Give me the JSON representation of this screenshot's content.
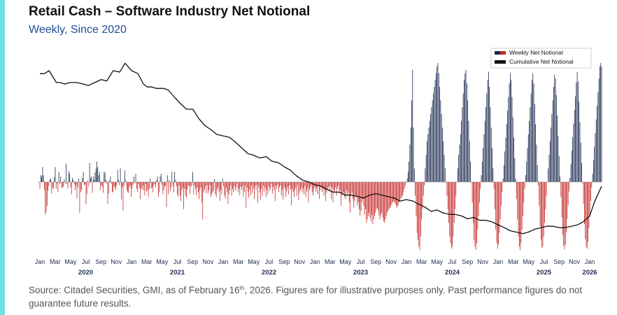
{
  "header": {
    "title": "Retail Cash – Software Industry Net Notional",
    "subtitle": "Weekly, Since 2020"
  },
  "footer": {
    "source_before": "Source: Citadel Securities, GMI, as of February 16",
    "source_sup": "th",
    "source_after": ", 2026. Figures are for illustrative purposes only. Past performance figures do not guarantee future results."
  },
  "colors": {
    "accent": "#6fe0e4",
    "positive": "#1b2a4e",
    "negative": "#c62a2a",
    "line": "#111111"
  },
  "chart_data": {
    "type": "bar+line",
    "title": "Retail Cash – Software Industry Net Notional",
    "subtitle": "Weekly, Since 2020",
    "xlabel": "",
    "ylabel": "",
    "y_axis_labels_shown": false,
    "legend_position": "top-right",
    "legend": [
      "Weekly Net Notional",
      "Cumulative Net Notional"
    ],
    "month_ticks": [
      "Jan",
      "Mar",
      "May",
      "Jul",
      "Sep",
      "Nov",
      "Jan",
      "Mar",
      "May",
      "Jul",
      "Sep",
      "Nov",
      "Jan",
      "Mar",
      "May",
      "Jul",
      "Sep",
      "Nov",
      "Jan",
      "Mar",
      "May",
      "Jul",
      "Sep",
      "Nov",
      "Jan",
      "Mar",
      "May",
      "Jul",
      "Sep",
      "Nov",
      "Jan",
      "Mar",
      "May",
      "Jul",
      "Sep",
      "Nov",
      "Jan"
    ],
    "year_labels": [
      "2020",
      "2021",
      "2022",
      "2023",
      "2024",
      "2025",
      "2026"
    ],
    "x_range_years": [
      2020.0,
      2026.13
    ],
    "series": [
      {
        "name": "Weekly Net Notional",
        "type": "bar",
        "units": "relative",
        "ylim": [
          -100,
          175
        ],
        "values": [
          -10,
          10,
          8,
          22,
          10,
          -12,
          -48,
          -44,
          -35,
          -13,
          -6,
          4,
          5,
          -17,
          -9,
          -10,
          7,
          22,
          -10,
          -2,
          -15,
          15,
          -3,
          8,
          -9,
          -8,
          -7,
          4,
          -3,
          27,
          -3,
          -10,
          16,
          12,
          -8,
          -18,
          6,
          3,
          -3,
          -12,
          -5,
          -24,
          -8,
          5,
          -45,
          -15,
          -12,
          6,
          15,
          -4,
          -4,
          -33,
          -18,
          2,
          -7,
          28,
          5,
          8,
          -16,
          8,
          3,
          14,
          20,
          30,
          22,
          10,
          15,
          -12,
          -5,
          -7,
          -16,
          15,
          14,
          3,
          -2,
          -32,
          -17,
          2,
          8,
          -3,
          -15,
          -15,
          -7,
          -8,
          -12,
          -5,
          18,
          3,
          -5,
          20,
          -26,
          -8,
          -42,
          -6,
          17,
          2,
          -12,
          -15,
          -16,
          -8,
          -5,
          -22,
          -10,
          -4,
          8,
          -2,
          12,
          -10,
          -15,
          -3,
          -8,
          -25,
          -10,
          -11,
          -5,
          -12,
          -20,
          -3,
          -14,
          -12,
          -22,
          -10,
          5,
          -10,
          -8,
          -15,
          -5,
          -3,
          -8,
          3,
          8,
          -22,
          -15,
          8,
          12,
          -4,
          -18,
          -12,
          -7,
          -5,
          -37,
          10,
          -18,
          3,
          -14,
          -8,
          15,
          -6,
          -15,
          15,
          3,
          -6,
          -18,
          -22,
          -5,
          -20,
          -28,
          -12,
          -8,
          -40,
          -10,
          -20,
          -23,
          -11,
          -6,
          -5,
          -18,
          -7,
          -5,
          15,
          -18,
          -5,
          -10,
          -20,
          -8,
          -15,
          -25,
          -12,
          -8,
          -30,
          -55,
          -15,
          -12,
          -6,
          -17,
          -5,
          -16,
          -12,
          -4,
          -22,
          -18,
          -15,
          -13,
          4,
          -18,
          -22,
          -11,
          -8,
          -14,
          -28,
          -12,
          -18,
          5,
          -6,
          -20,
          -25,
          -8,
          -15,
          -32,
          -18,
          -12,
          -5,
          -20,
          -10,
          -15,
          -6,
          -12,
          -8,
          -2,
          -15,
          -10,
          -20,
          -7,
          -12,
          -6,
          -22,
          -15,
          -5,
          -38,
          -8,
          -14,
          -23,
          -11,
          -20,
          -5,
          -16,
          -9,
          -25,
          -6,
          -12,
          -4,
          -30,
          -8,
          -15,
          -26,
          -10,
          -20,
          -5,
          -14,
          -8,
          -22,
          -11,
          -18,
          -6,
          -13,
          -9,
          -3,
          -17,
          -7,
          -12,
          -28,
          -6,
          -10,
          -4,
          -15,
          -8,
          -5,
          -20,
          -12,
          -26,
          -7,
          -10,
          -22,
          -14,
          -8,
          -18,
          -5,
          -11,
          -34,
          -10,
          -15,
          -22,
          -12,
          -8,
          -20,
          -4,
          -27,
          -16,
          -12,
          -8,
          -15,
          -10,
          -18,
          -6,
          -22,
          -14,
          -9,
          -30,
          -12,
          -8,
          -5,
          -15,
          -20,
          -11,
          -7,
          -14,
          -9,
          -18,
          -6,
          -25,
          -12,
          -8,
          -15,
          -10,
          -20,
          -12,
          -28,
          -16,
          -11,
          -7,
          -14,
          -6,
          -25,
          -8,
          -30,
          -12,
          -15,
          -8,
          -20,
          -10,
          -5,
          -16,
          -12,
          -35,
          -20,
          -18,
          -15,
          -22,
          -25,
          -12,
          -18,
          -16,
          -30,
          -45,
          -20,
          -15,
          -25,
          -38,
          -28,
          -20,
          -22,
          -35,
          -30,
          -40,
          -50,
          -42,
          -30,
          -25,
          -35,
          -48,
          -40,
          -60,
          -55,
          -50,
          -45,
          -52,
          -58,
          -48,
          -62,
          -55,
          -50,
          -45,
          -40,
          -38,
          -42,
          -50,
          -55,
          -48,
          -45,
          -52,
          -58,
          -60,
          -55,
          -50,
          -45,
          -42,
          -40,
          -38,
          -35,
          -33,
          -30,
          -28,
          -30,
          -32,
          -35,
          -38,
          -35,
          -30,
          -28,
          -25,
          -22,
          -20,
          -15,
          -10,
          -5,
          0,
          5,
          15,
          30,
          55,
          80,
          120,
          165,
          80,
          20,
          -20,
          -50,
          -75,
          -85,
          -95,
          -100,
          -80,
          -55,
          -40,
          -20,
          -5,
          20,
          40,
          60,
          70,
          80,
          90,
          100,
          110,
          120,
          130,
          140,
          150,
          160,
          170,
          175,
          160,
          140,
          120,
          100,
          80,
          60,
          40,
          20,
          0,
          -20,
          -40,
          -60,
          -80,
          -90,
          -98,
          -95,
          -80,
          -60,
          -40,
          -20,
          0,
          20,
          40,
          55,
          70,
          90,
          110,
          130,
          150,
          160,
          165,
          145,
          120,
          90,
          60,
          30,
          0,
          -30,
          -60,
          -85,
          -95,
          -100,
          -90,
          -70,
          -50,
          -30,
          -10,
          10,
          30,
          50,
          70,
          90,
          110,
          130,
          150,
          162,
          140,
          110,
          80,
          50,
          20,
          -10,
          -40,
          -70,
          -90,
          -98,
          -92,
          -75,
          -55,
          -35,
          -15,
          5,
          25,
          45,
          65,
          85,
          105,
          125,
          145,
          160,
          150,
          125,
          95,
          65,
          35,
          5,
          -25,
          -55,
          -80,
          -95,
          -100,
          -90,
          -70,
          -50,
          -30,
          -10,
          10,
          30,
          50,
          70,
          90,
          110,
          130,
          150,
          160,
          145,
          115,
          85,
          55,
          25,
          -5,
          -35,
          -65,
          -85,
          -97,
          -95,
          -80,
          -60,
          -40,
          -20,
          0,
          20,
          40,
          60,
          80,
          100,
          120,
          140,
          158,
          152,
          128,
          98,
          68,
          38,
          8,
          -22,
          -52,
          -78,
          -94,
          -99,
          -92,
          -74,
          -54,
          -34,
          -14,
          6,
          26,
          46,
          66,
          86,
          106,
          126,
          146,
          162,
          148,
          118,
          88,
          58,
          28,
          -2,
          -32,
          -62,
          -84,
          -96,
          -98,
          -88,
          -68,
          -48,
          -28,
          -8,
          12,
          32,
          52,
          72,
          92,
          112,
          132,
          152,
          170,
          175,
          170
        ]
      },
      {
        "name": "Cumulative Net Notional",
        "type": "line",
        "units": "relative",
        "ylim": [
          -40,
          80
        ],
        "x": [
          2020.0,
          2020.05,
          2020.1,
          2020.14,
          2020.18,
          2020.22,
          2020.27,
          2020.33,
          2020.4,
          2020.47,
          2020.53,
          2020.6,
          2020.67,
          2020.73,
          2020.8,
          2020.87,
          2020.93,
          2021.0,
          2021.07,
          2021.13,
          2021.17,
          2021.22,
          2021.27,
          2021.3,
          2021.35,
          2021.4,
          2021.47,
          2021.53,
          2021.6,
          2021.67,
          2021.73,
          2021.8,
          2021.87,
          2021.93,
          2022.0,
          2022.07,
          2022.13,
          2022.2,
          2022.27,
          2022.33,
          2022.4,
          2022.47,
          2022.53,
          2022.6,
          2022.67,
          2022.73,
          2022.8,
          2022.87,
          2022.93,
          2023.0,
          2023.07,
          2023.13,
          2023.2,
          2023.27,
          2023.33,
          2023.4,
          2023.47,
          2023.53,
          2023.6,
          2023.67,
          2023.73,
          2023.8,
          2023.87,
          2023.93,
          2024.0,
          2024.07,
          2024.13,
          2024.2,
          2024.27,
          2024.33,
          2024.4,
          2024.47,
          2024.53,
          2024.6,
          2024.67,
          2024.73,
          2024.8,
          2024.87,
          2024.93,
          2025.0,
          2025.07,
          2025.13,
          2025.2,
          2025.27,
          2025.33,
          2025.4,
          2025.47,
          2025.53,
          2025.6,
          2025.67,
          2025.73,
          2025.8,
          2025.87,
          2025.93,
          2026.0,
          2026.05,
          2026.1,
          2026.13
        ],
        "values": [
          70,
          70,
          72,
          68,
          64,
          64,
          63,
          64,
          64,
          63,
          62,
          64,
          66,
          65,
          72,
          71,
          77,
          72,
          70,
          63,
          61,
          61,
          60,
          60,
          60,
          59,
          54,
          50,
          46,
          46,
          40,
          35,
          32,
          29,
          28,
          27,
          24,
          20,
          16,
          15,
          13,
          14,
          11,
          10,
          7,
          5,
          1,
          -2,
          -3,
          -5,
          -6,
          -8,
          -10,
          -10,
          -12,
          -12,
          -13,
          -14,
          -12,
          -11,
          -12,
          -13,
          -14,
          -16,
          -15,
          -16,
          -18,
          -20,
          -23,
          -22,
          -24,
          -25,
          -25,
          -26,
          -28,
          -27,
          -29,
          -29,
          -30,
          -32,
          -34,
          -36,
          -37,
          -38,
          -37,
          -35,
          -34,
          -33,
          -33,
          -34,
          -34,
          -33,
          -32,
          -30,
          -26,
          -17,
          -10,
          -6
        ]
      }
    ]
  }
}
